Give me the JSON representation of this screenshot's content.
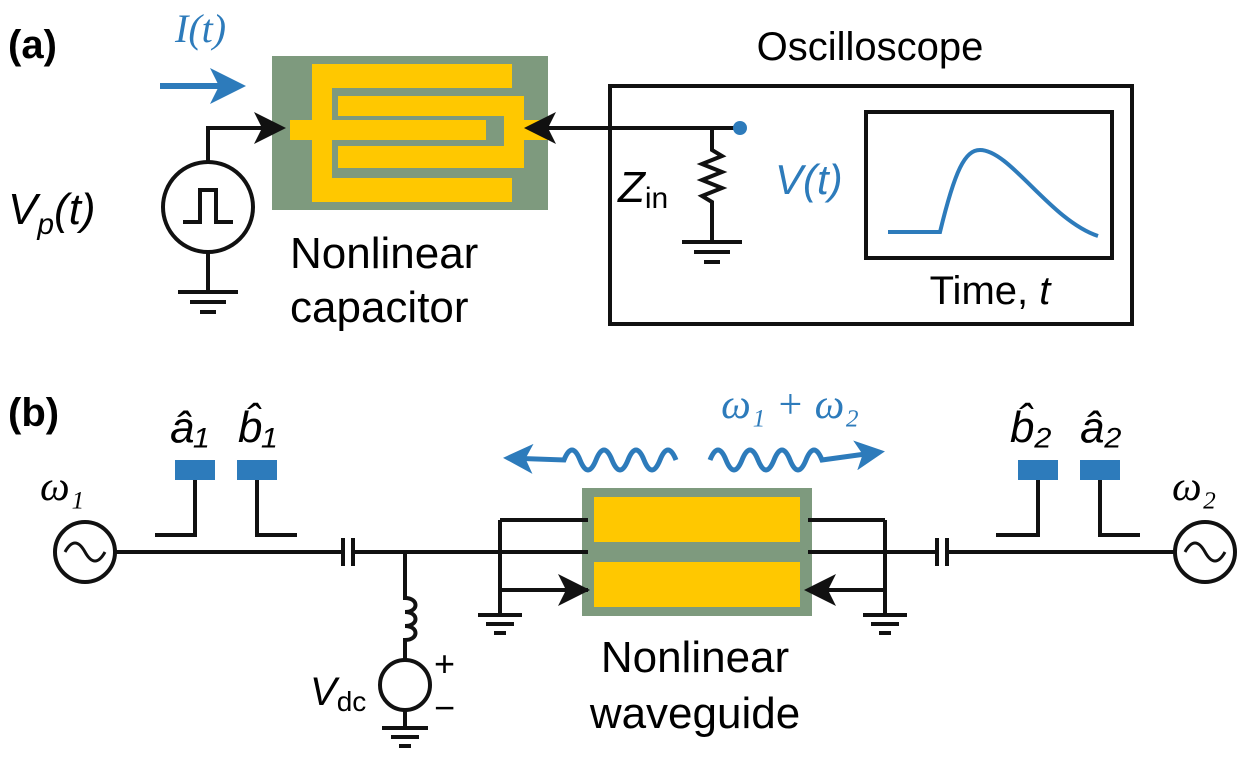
{
  "panel_a": {
    "label": "(a)",
    "current": "I(t)",
    "source": {
      "main": "V",
      "sub": "p",
      "tail": "(t)"
    },
    "device": [
      "Nonlinear",
      "capacitor"
    ],
    "scope_title": "Oscilloscope",
    "impedance": {
      "main": "Z",
      "sub": "in"
    },
    "signal": "V(t)",
    "time_axis": {
      "main": "Time, ",
      "var": "t"
    }
  },
  "panel_b": {
    "label": "(b)",
    "sum_frequency": "ω₁ + ω₂",
    "left_source": "ω₁",
    "right_source": "ω₂",
    "ports": [
      "â₁",
      "b̂₁",
      "b̂₂",
      "â₂"
    ],
    "bias": {
      "main": "V",
      "sub": "dc",
      "plus": "+",
      "minus": "−"
    },
    "device": [
      "Nonlinear",
      "waveguide"
    ]
  }
}
